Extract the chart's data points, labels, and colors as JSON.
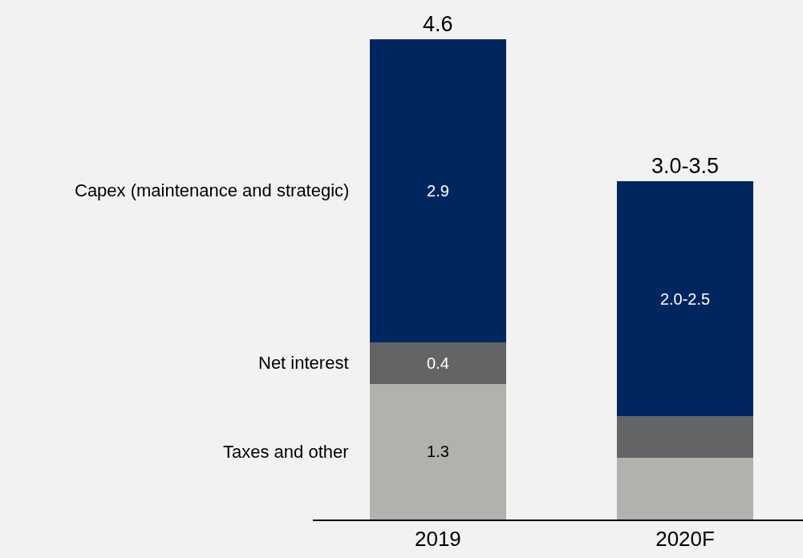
{
  "chart_data": {
    "type": "bar",
    "stacked": true,
    "categories": [
      "2019",
      "2020F"
    ],
    "series": [
      {
        "name": "Taxes and other",
        "color": "#b1b2ad",
        "values": [
          1.3,
          0.59
        ],
        "value_labels": [
          "1.3",
          null
        ]
      },
      {
        "name": "Net interest",
        "color": "#636466",
        "values": [
          0.4,
          0.4
        ],
        "value_labels": [
          "0.4",
          null
        ]
      },
      {
        "name": "Capex (maintenance and strategic)",
        "color": "#002660",
        "values": [
          2.9,
          2.25
        ],
        "value_labels": [
          "2.9",
          "2.0-2.5"
        ]
      }
    ],
    "totals": [
      "4.6",
      "3.0-3.5"
    ],
    "legend": false
  }
}
